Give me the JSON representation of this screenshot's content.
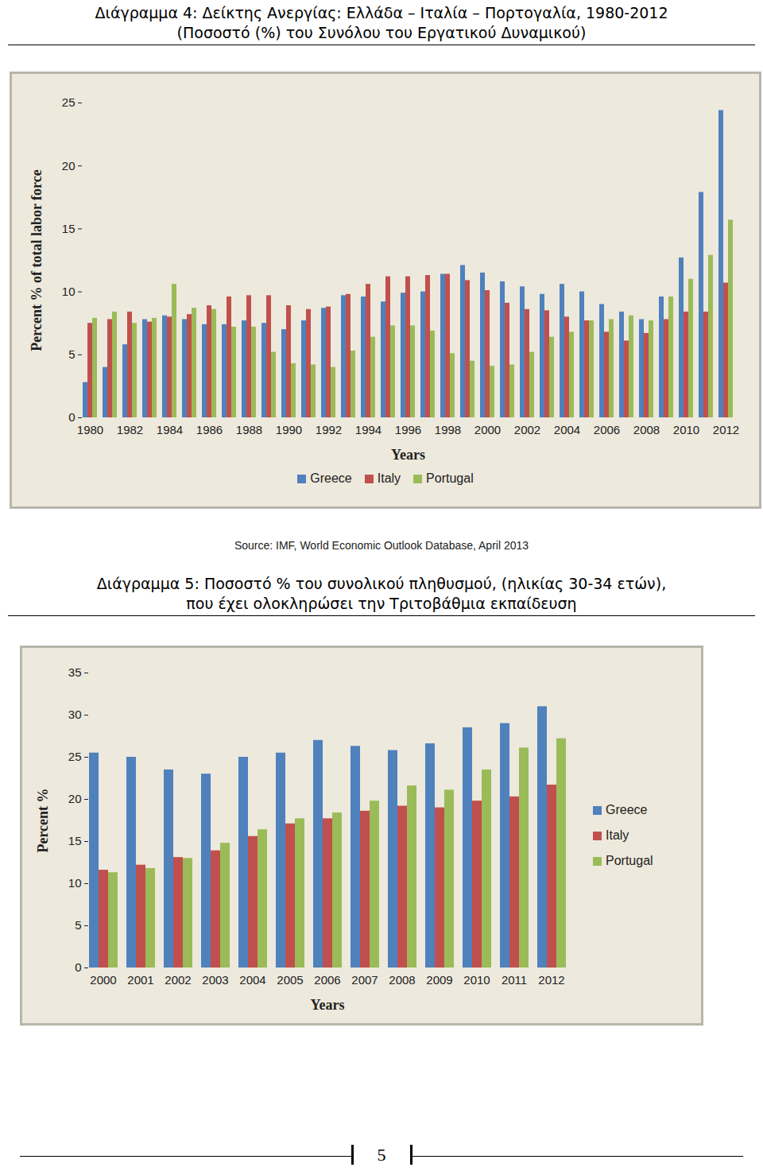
{
  "chart_data": [
    {
      "type": "bar",
      "title": "Διάγραμμα 4: Δείκτης Ανεργίας: Ελλάδα – Ιταλία – Πορτογαλία, 1980-2012",
      "subtitle": "(Ποσοστό (%) του Συνόλου του Εργατικού Δυναμικού)",
      "source": "Source: IMF, World Economic Outlook Database, April 2013",
      "xlabel": "Years",
      "ylabel": "Percent % of total labor force",
      "categories": [
        "1980",
        null,
        "1982",
        null,
        "1984",
        null,
        "1986",
        null,
        "1988",
        null,
        "1990",
        null,
        "1992",
        null,
        "1994",
        null,
        "1996",
        null,
        "1998",
        null,
        "2000",
        null,
        "2002",
        null,
        "2004",
        null,
        "2006",
        null,
        "2008",
        null,
        "2010",
        null,
        "2012"
      ],
      "series": [
        {
          "name": "Greece",
          "color": "#4f81bd",
          "values": [
            2.8,
            4.0,
            5.8,
            7.8,
            8.1,
            7.8,
            7.4,
            7.4,
            7.7,
            7.5,
            7.0,
            7.7,
            8.7,
            9.7,
            9.6,
            9.2,
            9.9,
            10.0,
            11.4,
            12.1,
            11.5,
            10.8,
            10.4,
            9.8,
            10.6,
            10.0,
            9.0,
            8.4,
            7.8,
            9.6,
            12.7,
            17.9,
            24.4
          ]
        },
        {
          "name": "Italy",
          "color": "#c0504d",
          "values": [
            7.5,
            7.8,
            8.4,
            7.6,
            8.0,
            8.2,
            8.9,
            9.6,
            9.7,
            9.7,
            8.9,
            8.6,
            8.8,
            9.8,
            10.6,
            11.2,
            11.2,
            11.3,
            11.4,
            10.9,
            10.1,
            9.1,
            8.6,
            8.5,
            8.0,
            7.7,
            6.8,
            6.1,
            6.7,
            7.8,
            8.4,
            8.4,
            10.7
          ]
        },
        {
          "name": "Portugal",
          "color": "#9bbb59",
          "values": [
            7.9,
            8.4,
            7.5,
            7.9,
            10.6,
            8.7,
            8.6,
            7.2,
            7.2,
            5.2,
            4.3,
            4.2,
            4.0,
            5.3,
            6.4,
            7.3,
            7.3,
            6.9,
            5.1,
            4.5,
            4.1,
            4.2,
            5.2,
            6.4,
            6.8,
            7.7,
            7.8,
            8.1,
            7.7,
            9.6,
            11.0,
            12.9,
            15.7
          ]
        }
      ],
      "ylim": [
        0,
        25
      ],
      "yticks": [
        0,
        5,
        10,
        15,
        20,
        25
      ],
      "grid": false,
      "legend": "bottom"
    },
    {
      "type": "bar",
      "title": "Διάγραμμα 5: Ποσοστό % του συνολικού πληθυσμού, (ηλικίας 30-34 ετών),",
      "subtitle": "που έχει ολοκληρώσει την Τριτοβάθμια εκπαίδευση",
      "xlabel": "Years",
      "ylabel": "Percent %",
      "categories": [
        "2000",
        "2001",
        "2002",
        "2003",
        "2004",
        "2005",
        "2006",
        "2007",
        "2008",
        "2009",
        "2010",
        "2011",
        "2012"
      ],
      "series": [
        {
          "name": "Greece",
          "color": "#4f81bd",
          "values": [
            25.5,
            25.0,
            23.5,
            23.0,
            25.0,
            25.5,
            27.0,
            26.3,
            25.8,
            26.6,
            28.5,
            29.0,
            31.0
          ]
        },
        {
          "name": "Italy",
          "color": "#c0504d",
          "values": [
            11.6,
            12.2,
            13.1,
            13.9,
            15.6,
            17.1,
            17.7,
            18.6,
            19.2,
            19.0,
            19.8,
            20.3,
            21.7
          ]
        },
        {
          "name": "Portugal",
          "color": "#9bbb59",
          "values": [
            11.3,
            11.8,
            13.0,
            14.8,
            16.4,
            17.7,
            18.4,
            19.8,
            21.6,
            21.1,
            23.5,
            26.1,
            27.2
          ]
        }
      ],
      "ylim": [
        0,
        35
      ],
      "yticks": [
        0,
        5,
        10,
        15,
        20,
        25,
        30,
        35
      ],
      "grid": false,
      "legend": "right"
    }
  ],
  "footer": "5"
}
